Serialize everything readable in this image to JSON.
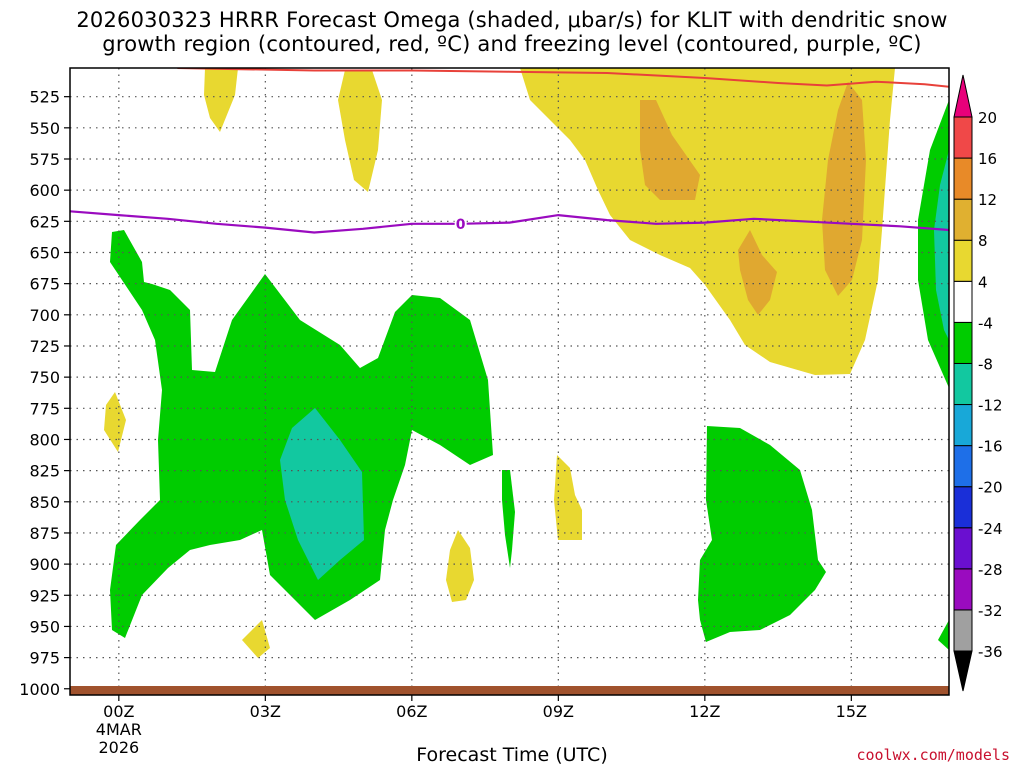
{
  "title_line1": "2026030323 HRRR Forecast Omega (shaded, μbar/s) for KLIT with dendritic snow",
  "title_line2": "growth region (contoured, red, ºC) and freezing level (contoured, purple, ºC)",
  "credit": "coolwx.com/models",
  "chart_data": {
    "type": "heatmap",
    "title": "2026030323 HRRR Forecast Omega (shaded, μbar/s) for KLIT with dendritic snow growth region (contoured, red, ºC) and freezing level (contoured, purple, ºC)",
    "xlabel": "Forecast Time (UTC)",
    "ylabel": "",
    "x_ticks": [
      "00Z",
      "03Z",
      "06Z",
      "09Z",
      "12Z",
      "15Z"
    ],
    "x_tick_hours": [
      0,
      3,
      6,
      9,
      12,
      15
    ],
    "x_date_label": [
      "4MAR",
      "2026"
    ],
    "xlim": [
      -1,
      17
    ],
    "y_ticks": [
      525,
      550,
      575,
      600,
      625,
      650,
      675,
      700,
      725,
      750,
      775,
      800,
      825,
      850,
      875,
      900,
      925,
      950,
      975,
      1000
    ],
    "ylim": [
      1005,
      502
    ],
    "grid": true,
    "colorbar": {
      "levels": [
        -36,
        -32,
        -28,
        -24,
        -20,
        -16,
        -12,
        -8,
        -4,
        4,
        8,
        12,
        16,
        20
      ],
      "colors": [
        "#000000",
        "#a0a0a0",
        "#9a0bbf",
        "#6a0fd0",
        "#1a2fd8",
        "#1e6fe8",
        "#18a8d8",
        "#12c8a0",
        "#00cc00",
        "#ffffff",
        "#e8d830",
        "#e0b030",
        "#e88a28",
        "#f04848",
        "#e8007a"
      ]
    },
    "freezing_level": {
      "label": "0",
      "color": "#9a0bbf",
      "points": [
        [
          -1,
          617
        ],
        [
          0,
          620
        ],
        [
          1,
          623
        ],
        [
          2,
          627
        ],
        [
          3,
          630
        ],
        [
          4,
          634
        ],
        [
          5,
          631
        ],
        [
          6,
          627
        ],
        [
          7,
          627
        ],
        [
          8,
          626
        ],
        [
          9,
          620
        ],
        [
          10,
          624
        ],
        [
          11,
          627
        ],
        [
          12,
          626
        ],
        [
          13,
          623
        ],
        [
          14,
          625
        ],
        [
          15,
          627
        ],
        [
          16,
          629
        ],
        [
          17,
          632
        ]
      ]
    },
    "dgz_contour": {
      "color": "#e8413a",
      "points": [
        [
          1.2,
          502
        ],
        [
          2.5,
          503
        ],
        [
          4,
          504
        ],
        [
          6,
          504
        ],
        [
          8,
          505
        ],
        [
          10,
          506
        ],
        [
          12,
          510
        ],
        [
          13.5,
          514
        ],
        [
          14.5,
          516
        ],
        [
          15.5,
          513
        ],
        [
          16.5,
          515
        ],
        [
          17,
          517
        ]
      ]
    },
    "surface_color": "#a0522d"
  }
}
